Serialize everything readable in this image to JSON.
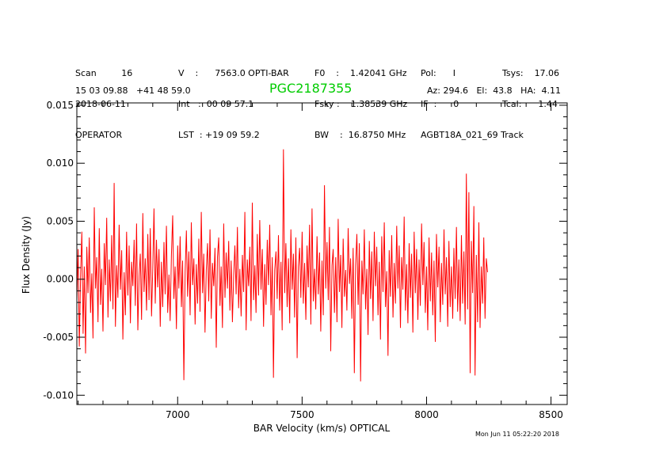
{
  "header": {
    "scan": [
      "Scan         16",
      "2018-06-11",
      "OPERATOR"
    ],
    "velocity": [
      "V    :      7563.0 OPTI-BAR",
      "Int   :  00 09 57.1",
      "LST  : +19 09 59.2"
    ],
    "freq": [
      "F0    :    1.42041 GHz",
      "Fsky :    1.38539 GHz",
      "BW    :  16.8750 MHz"
    ],
    "pol": [
      "Pol:      I",
      "IF  :      0",
      "AGBT18A_021_69 Track"
    ],
    "tsys": [
      "Tsys:    17.06",
      "Tcal:      1.44"
    ],
    "coords": "15 03 09.88   +41 48 59.0",
    "source": "PGC2187355",
    "azel": "Az: 294.6   El:  43.8   HA:  4.11",
    "timestamp": "Mon Jun 11 05:22:20 2018"
  },
  "colors": {
    "trace": "#ff0000",
    "source": "#00cc00",
    "axes": "#000000"
  },
  "chart_data": {
    "type": "line",
    "xlabel": "BAR Velocity (km/s) OPTICAL",
    "ylabel": "Flux Density (Jy)",
    "xlim": [
      6595,
      8565
    ],
    "ylim": [
      -0.0108,
      0.0152
    ],
    "xticks": [
      7000,
      7500,
      8000,
      8500
    ],
    "xtick_labels": [
      "7000",
      "7500",
      "8000",
      "8500"
    ],
    "yticks": [
      -0.01,
      -0.005,
      0.0,
      0.005,
      0.01,
      0.015
    ],
    "ytick_labels": [
      "-0.010",
      "-0.005",
      "0.000",
      "0.005",
      "0.010",
      "0.015"
    ],
    "series": [
      {
        "x_start": 6595,
        "x_step": 5,
        "values": [
          -0.0018,
          0.0026,
          -0.0058,
          0.0002,
          0.0041,
          -0.0047,
          0.0011,
          -0.0064,
          0.0028,
          -0.0012,
          0.0036,
          -0.0029,
          0.0005,
          -0.0051,
          0.0062,
          -0.0008,
          0.0019,
          -0.0037,
          0.0044,
          -0.0022,
          0.0009,
          -0.0045,
          0.0031,
          -0.0005,
          0.0053,
          -0.0033,
          0.0017,
          -0.0019,
          0.0038,
          -0.0026,
          0.0083,
          -0.0041,
          0.0012,
          -0.0016,
          0.0047,
          -0.0009,
          0.0025,
          -0.0052,
          0.0006,
          -0.0031,
          0.0041,
          -0.0014,
          0.0029,
          -0.0038,
          0.0015,
          -0.0006,
          0.0034,
          -0.0023,
          0.0048,
          -0.0044,
          0.0003,
          0.0022,
          -0.0035,
          0.0057,
          -0.0011,
          0.0018,
          -0.0027,
          0.0039,
          -0.0018,
          0.0044,
          -0.0032,
          0.0008,
          0.0061,
          -0.0021,
          0.0034,
          -0.0007,
          0.0026,
          -0.0041,
          0.0015,
          -0.0024,
          0.0032,
          -0.0013,
          0.0046,
          -0.0029,
          0.0004,
          -0.0036,
          0.0021,
          0.0055,
          -0.0017,
          0.0011,
          -0.0043,
          0.0029,
          -0.0008,
          0.0037,
          -0.0024,
          0.0016,
          -0.0087,
          0.0006,
          0.0042,
          -0.0015,
          0.0024,
          -0.0031,
          0.0049,
          -0.0005,
          0.0018,
          -0.0039,
          0.0013,
          -0.0021,
          0.0035,
          -0.0028,
          0.0058,
          -0.0012,
          0.0022,
          -0.0046,
          0.0008,
          0.0031,
          -0.0019,
          0.0043,
          -0.0034,
          0.0014,
          -0.0006,
          0.0027,
          -0.0059,
          0.0019,
          0.0036,
          -0.0023,
          0.0011,
          -0.0042,
          0.0048,
          -0.0016,
          0.0023,
          -0.0008,
          0.0033,
          -0.0027,
          0.0016,
          -0.0037,
          0.0004,
          0.0029,
          -0.0013,
          0.0045,
          -0.0025,
          0.0009,
          -0.0032,
          0.0021,
          -0.0011,
          0.0058,
          -0.0044,
          0.0017,
          -0.0006,
          0.0028,
          -0.0036,
          0.0066,
          -0.0018,
          0.0012,
          -0.0029,
          0.0039,
          -0.0014,
          0.0051,
          -0.0009,
          0.0026,
          -0.0041,
          0.0013,
          -0.0022,
          0.0034,
          -0.0005,
          0.0047,
          -0.0031,
          0.0019,
          -0.0085,
          0.0008,
          0.0024,
          -0.0017,
          0.0038,
          -0.0027,
          0.0015,
          -0.0044,
          0.0112,
          -0.0012,
          0.0031,
          -0.0024,
          0.0018,
          -0.0038,
          0.0043,
          -0.0009,
          0.0022,
          -0.0033,
          0.0036,
          -0.0068,
          0.0011,
          0.0027,
          -0.0016,
          0.0041,
          -0.0021,
          0.0014,
          -0.0035,
          0.0029,
          -0.0007,
          0.0047,
          -0.0039,
          0.0061,
          -0.0019,
          0.0009,
          -0.0026,
          0.0037,
          -0.0013,
          0.0023,
          -0.0045,
          0.0016,
          -0.0031,
          0.0081,
          -0.0008,
          0.0032,
          -0.0018,
          0.0045,
          -0.0062,
          0.0012,
          0.0026,
          -0.0029,
          0.0019,
          -0.0037,
          0.0052,
          -0.0011,
          0.0021,
          -0.0042,
          0.0035,
          -0.0015,
          0.0008,
          -0.0027,
          0.0044,
          -0.0004,
          0.0018,
          -0.0034,
          0.0027,
          -0.0081,
          0.0012,
          0.0039,
          -0.0022,
          0.0031,
          -0.0088,
          0.0016,
          -0.0013,
          0.0043,
          -0.0026,
          0.0009,
          -0.0048,
          0.0033,
          -0.0017,
          0.0024,
          -0.0036,
          0.0041,
          -0.0006,
          0.0028,
          -0.0031,
          0.0015,
          -0.0052,
          0.0037,
          -0.0011,
          0.0049,
          -0.0024,
          0.0007,
          -0.0066,
          0.0025,
          -0.0015,
          0.0038,
          -0.0033,
          0.0014,
          -0.0021,
          0.0046,
          -0.0008,
          0.0029,
          -0.0042,
          0.0019,
          -0.0009,
          0.0054,
          -0.0027,
          0.0013,
          -0.0038,
          0.0031,
          -0.0016,
          0.0022,
          -0.0046,
          0.0041,
          -0.0012,
          0.0026,
          -0.0035,
          0.0017,
          -0.0023,
          0.0048,
          -0.0005,
          0.0032,
          -0.0029,
          0.0011,
          -0.0044,
          0.0036,
          -0.0019,
          0.0023,
          -0.0031,
          0.0016,
          -0.0054,
          0.0039,
          -0.0007,
          0.0028,
          -0.0037,
          0.0014,
          -0.0022,
          0.0043,
          -0.0013,
          0.0019,
          -0.0041,
          0.0033,
          -0.0024,
          0.0011,
          -0.0034,
          0.0027,
          -0.0017,
          0.0045,
          -0.0028,
          0.0017,
          -0.0036,
          0.0038,
          -0.0021,
          0.0024,
          -0.0039,
          0.0091,
          -0.0026,
          0.0075,
          -0.0081,
          0.0033,
          -0.0012,
          0.0063,
          -0.0083,
          0.0021,
          -0.0037,
          0.0049,
          -0.0042,
          0.0011,
          -0.0021,
          0.0036,
          -0.0034,
          0.0018,
          0.0006
        ]
      }
    ]
  }
}
